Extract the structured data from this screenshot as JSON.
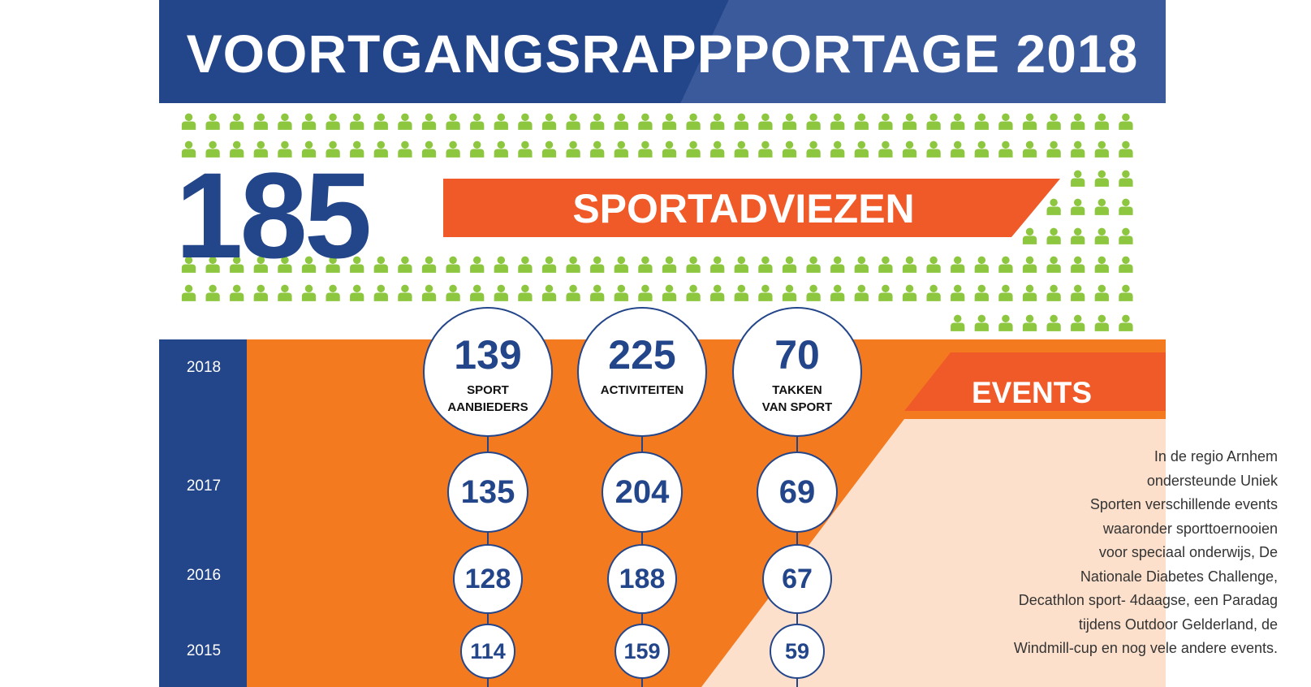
{
  "header": {
    "title": "VOORTGANGSRAPPPORTAGE 2018"
  },
  "advice": {
    "count": "185",
    "label": "SPORTADVIEZEN"
  },
  "metrics": [
    {
      "label_line1": "SPORT",
      "label_line2": "AANBIEDERS",
      "values": [
        "139",
        "135",
        "128",
        "114"
      ]
    },
    {
      "label_line1": "ACTIVITEITEN",
      "label_line2": "",
      "values": [
        "225",
        "204",
        "188",
        "159"
      ]
    },
    {
      "label_line1": "TAKKEN",
      "label_line2": "VAN SPORT",
      "values": [
        "70",
        "69",
        "67",
        "59"
      ]
    }
  ],
  "years": [
    "2018",
    "2017",
    "2016",
    "2015"
  ],
  "events": {
    "title": "EVENTS",
    "lines": [
      "In de regio Arnhem",
      "ondersteunde Uniek",
      "Sporten verschillende events",
      "waaronder sporttoernooien",
      "voor speciaal onderwijs, De",
      "Nationale Diabetes Challenge,",
      "Decathlon sport- 4daagse, een Paradag",
      "tijdens Outdoor Gelderland, de",
      "Windmill-cup en nog vele andere events."
    ]
  },
  "colors": {
    "navy": "#23458a",
    "navy_light": "#3a5a9c",
    "orange": "#f47a20",
    "orange_dark": "#ef5a28",
    "green": "#8dc63f",
    "peach": "#fde0cb"
  }
}
